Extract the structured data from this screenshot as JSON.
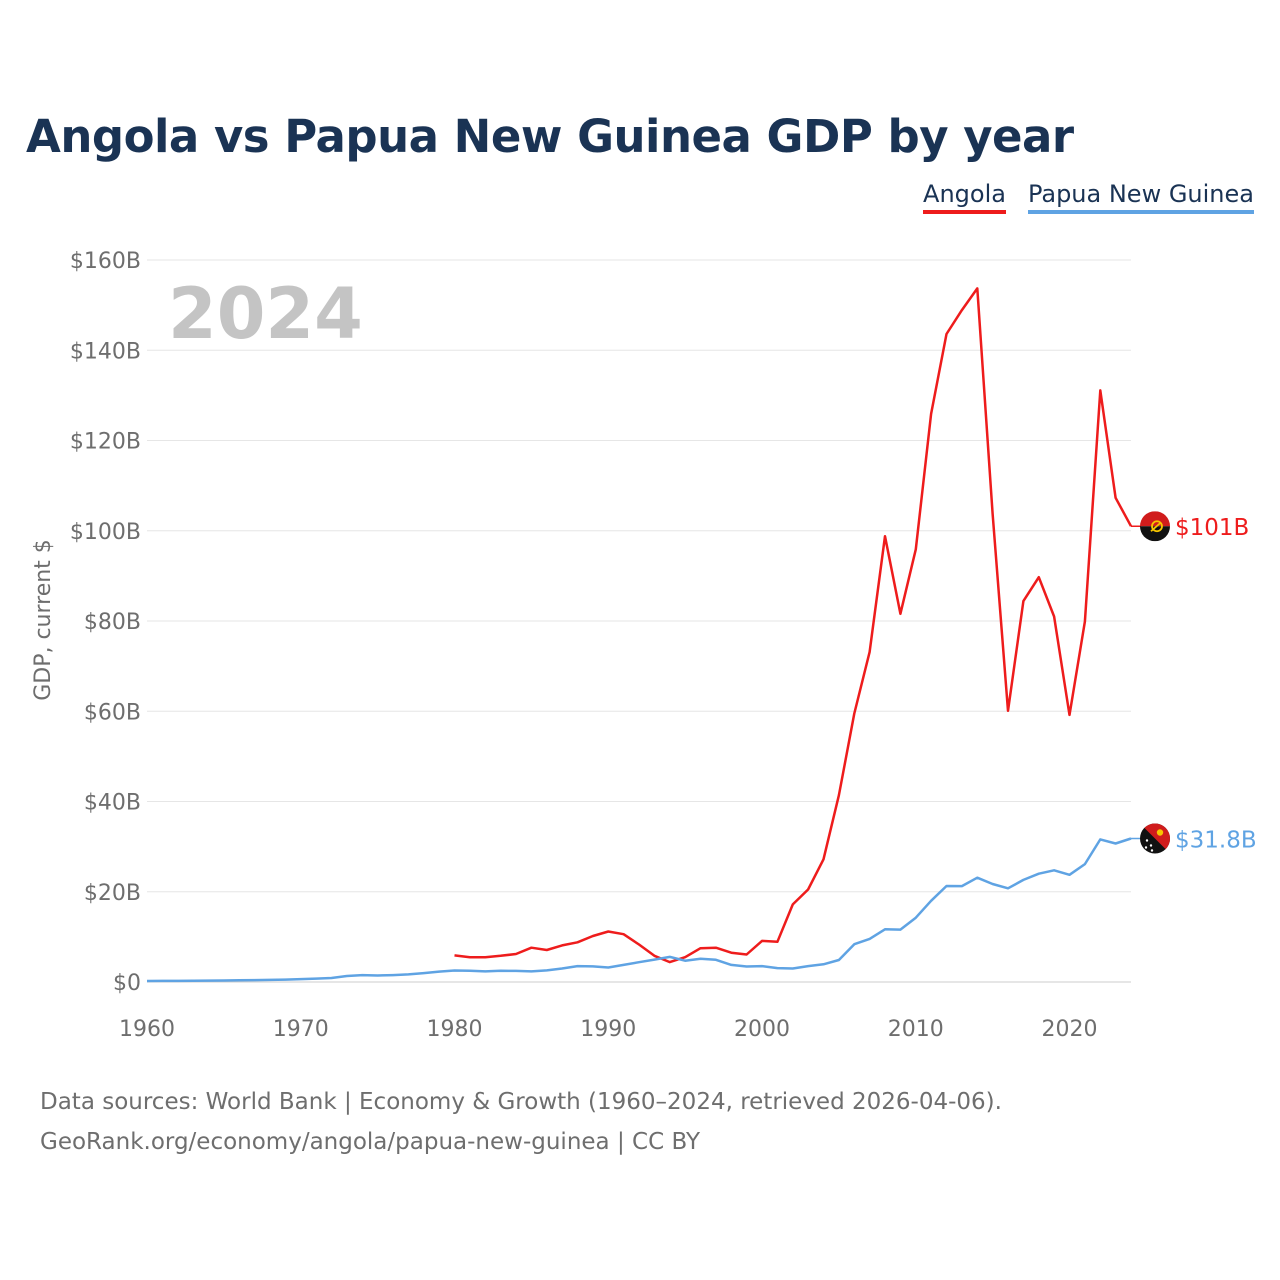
{
  "header": {
    "title": "Angola vs Papua New Guinea GDP by year"
  },
  "legend": [
    {
      "label": "Angola",
      "color": "#ee1c1c"
    },
    {
      "label": "Papua New Guinea",
      "color": "#5fa3e3"
    }
  ],
  "footer": {
    "line1": "Data sources: World Bank | Economy & Growth (1960–2024, retrieved 2026-04-06).",
    "line2": "GeoRank.org/economy/angola/papua-new-guinea | CC BY"
  },
  "chart_data": {
    "type": "line",
    "title": "Angola vs Papua New Guinea GDP by year",
    "watermark_year": "2024",
    "ylabel": "GDP, current $",
    "xlabel": "",
    "xlim": [
      1960,
      2024
    ],
    "ylim": [
      0,
      160
    ],
    "y_unit": "billion USD",
    "x_ticks": [
      1960,
      1970,
      1980,
      1990,
      2000,
      2010,
      2020
    ],
    "y_ticks": [
      {
        "value": 0,
        "label": "$0"
      },
      {
        "value": 20,
        "label": "$20B"
      },
      {
        "value": 40,
        "label": "$40B"
      },
      {
        "value": 60,
        "label": "$60B"
      },
      {
        "value": 80,
        "label": "$80B"
      },
      {
        "value": 100,
        "label": "$100B"
      },
      {
        "value": 120,
        "label": "$120B"
      },
      {
        "value": 140,
        "label": "$140B"
      },
      {
        "value": 160,
        "label": "$160B"
      }
    ],
    "grid": true,
    "legend_position": "top-right",
    "series": [
      {
        "name": "Angola",
        "color": "#ee1c1c",
        "end_label": "$101B",
        "flag_icon": "angola-flag-icon",
        "x": [
          1980,
          1981,
          1982,
          1983,
          1984,
          1985,
          1986,
          1987,
          1988,
          1989,
          1990,
          1991,
          1992,
          1993,
          1994,
          1995,
          1996,
          1997,
          1998,
          1999,
          2000,
          2001,
          2002,
          2003,
          2004,
          2005,
          2006,
          2007,
          2008,
          2009,
          2010,
          2011,
          2012,
          2013,
          2014,
          2015,
          2016,
          2017,
          2018,
          2019,
          2020,
          2021,
          2022,
          2023,
          2024
        ],
        "values": [
          5.9,
          5.5,
          5.5,
          5.8,
          6.2,
          7.6,
          7.1,
          8.1,
          8.8,
          10.2,
          11.2,
          10.6,
          8.3,
          5.8,
          4.4,
          5.5,
          7.5,
          7.6,
          6.5,
          6.1,
          9.1,
          8.9,
          17.2,
          20.5,
          27.2,
          41.4,
          59.5,
          73.1,
          98.8,
          81.6,
          95.9,
          125.9,
          143.6,
          148.9,
          153.7,
          103.8,
          60.1,
          84.4,
          89.7,
          81.0,
          59.2,
          79.9,
          131.1,
          107.3,
          101.0
        ]
      },
      {
        "name": "Papua New Guinea",
        "color": "#5fa3e3",
        "end_label": "$31.8B",
        "flag_icon": "papua-new-guinea-flag-icon",
        "x": [
          1960,
          1961,
          1962,
          1963,
          1964,
          1965,
          1966,
          1967,
          1968,
          1969,
          1970,
          1971,
          1972,
          1973,
          1974,
          1975,
          1976,
          1977,
          1978,
          1979,
          1980,
          1981,
          1982,
          1983,
          1984,
          1985,
          1986,
          1987,
          1988,
          1989,
          1990,
          1991,
          1992,
          1993,
          1994,
          1995,
          1996,
          1997,
          1998,
          1999,
          2000,
          2001,
          2002,
          2003,
          2004,
          2005,
          2006,
          2007,
          2008,
          2009,
          2010,
          2011,
          2012,
          2013,
          2014,
          2015,
          2016,
          2017,
          2018,
          2019,
          2020,
          2021,
          2022,
          2023,
          2024
        ],
        "values": [
          0.23,
          0.24,
          0.25,
          0.27,
          0.3,
          0.34,
          0.38,
          0.42,
          0.47,
          0.54,
          0.65,
          0.76,
          0.89,
          1.32,
          1.53,
          1.45,
          1.54,
          1.69,
          1.97,
          2.31,
          2.55,
          2.48,
          2.35,
          2.48,
          2.47,
          2.36,
          2.56,
          3.0,
          3.52,
          3.46,
          3.22,
          3.79,
          4.38,
          4.96,
          5.57,
          4.72,
          5.17,
          4.93,
          3.79,
          3.44,
          3.52,
          3.08,
          2.99,
          3.53,
          3.93,
          4.87,
          8.37,
          9.55,
          11.67,
          11.61,
          14.25,
          17.99,
          21.28,
          21.26,
          23.12,
          21.72,
          20.76,
          22.63,
          24.0,
          24.75,
          23.75,
          26.12,
          31.6,
          30.7,
          31.8
        ]
      }
    ]
  }
}
